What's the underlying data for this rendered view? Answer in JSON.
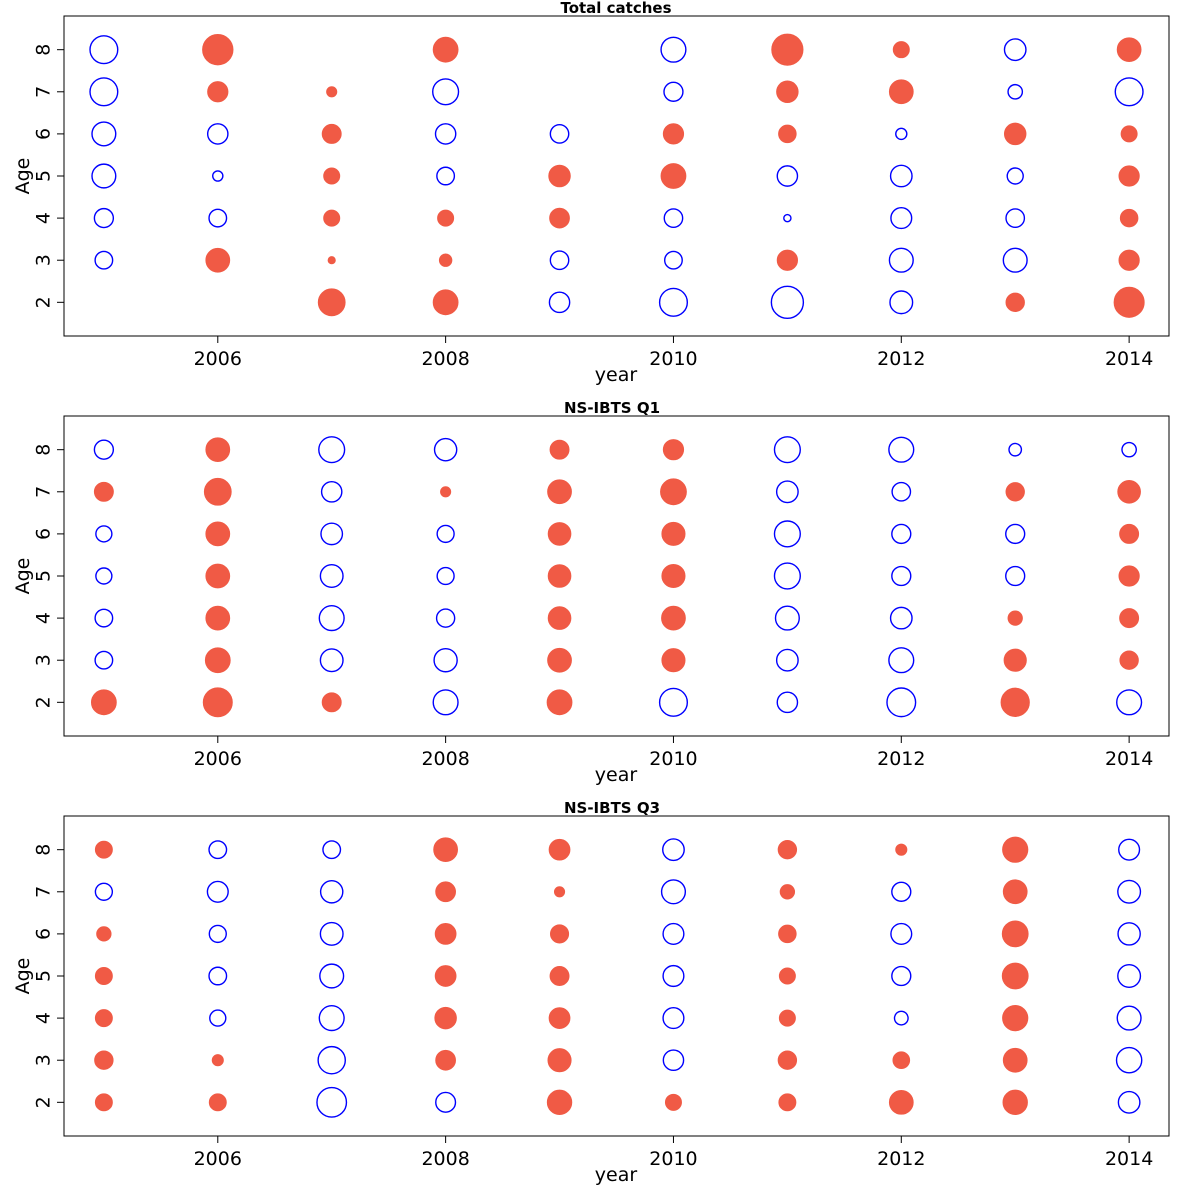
{
  "colors": {
    "positive": "#f05a45",
    "negative": "#0000ff"
  },
  "chart_data": [
    {
      "type": "scatter",
      "subtype": "bubble-residuals",
      "title": "Total catches",
      "xlabel": "year",
      "ylabel": "Age",
      "xlim": [
        2004.65,
        2014.35
      ],
      "ylim": [
        1.2,
        8.8
      ],
      "x_ticks": [
        2006,
        2008,
        2010,
        2012,
        2014
      ],
      "y_ticks": [
        2,
        3,
        4,
        5,
        6,
        7,
        8
      ],
      "years": [
        2005,
        2006,
        2007,
        2008,
        2009,
        2010,
        2011,
        2012,
        2013,
        2014
      ],
      "ages": [
        2,
        3,
        4,
        5,
        6,
        7,
        8
      ],
      "residuals": [
        [
          null,
          -0.3,
          -0.35,
          -0.55,
          -0.55,
          -0.75,
          -0.75
        ],
        [
          null,
          0.55,
          -0.3,
          -0.1,
          -0.4,
          0.4,
          0.9
        ],
        [
          0.7,
          0.05,
          0.25,
          0.25,
          0.35,
          0.1,
          null
        ],
        [
          0.6,
          0.15,
          0.25,
          -0.3,
          -0.4,
          -0.65,
          0.6
        ],
        [
          -0.4,
          -0.33,
          0.38,
          0.45,
          -0.33,
          null,
          null
        ],
        [
          -0.75,
          -0.3,
          -0.33,
          0.6,
          0.4,
          -0.35,
          -0.6
        ],
        [
          -1.0,
          0.4,
          -0.05,
          -0.4,
          0.3,
          0.45,
          0.95
        ],
        [
          -0.5,
          -0.55,
          -0.42,
          -0.45,
          -0.12,
          0.55,
          0.25
        ],
        [
          0.33,
          -0.55,
          -0.33,
          -0.25,
          0.45,
          -0.2,
          -0.45
        ],
        [
          0.88,
          0.4,
          0.3,
          0.4,
          0.25,
          -0.75,
          0.55
        ]
      ]
    },
    {
      "type": "scatter",
      "subtype": "bubble-residuals",
      "title": "NS-IBTS Q1",
      "xlabel": "year",
      "ylabel": "Age",
      "xlim": [
        2004.65,
        2014.35
      ],
      "ylim": [
        1.2,
        8.8
      ],
      "x_ticks": [
        2006,
        2008,
        2010,
        2012,
        2014
      ],
      "y_ticks": [
        2,
        3,
        4,
        5,
        6,
        7,
        8
      ],
      "years": [
        2005,
        2006,
        2007,
        2008,
        2009,
        2010,
        2011,
        2012,
        2013,
        2014
      ],
      "ages": [
        2,
        3,
        4,
        5,
        6,
        7,
        8
      ],
      "residuals": [
        [
          0.6,
          -0.3,
          -0.3,
          -0.25,
          -0.25,
          0.35,
          -0.35
        ],
        [
          0.82,
          0.6,
          0.55,
          0.55,
          0.55,
          0.7,
          0.55
        ],
        [
          0.35,
          -0.5,
          -0.6,
          -0.5,
          -0.45,
          -0.4,
          -0.65
        ],
        [
          -0.6,
          -0.52,
          -0.32,
          -0.28,
          -0.28,
          0.1,
          -0.48
        ],
        [
          0.6,
          0.55,
          0.5,
          0.5,
          0.5,
          0.55,
          0.35
        ],
        [
          -0.75,
          0.52,
          0.55,
          0.52,
          0.52,
          0.65,
          0.4
        ],
        [
          -0.4,
          -0.45,
          -0.55,
          -0.65,
          -0.65,
          -0.45,
          -0.65
        ],
        [
          -0.8,
          -0.6,
          -0.45,
          -0.35,
          -0.35,
          -0.33,
          -0.6
        ],
        [
          0.78,
          0.48,
          0.2,
          -0.35,
          -0.35,
          0.33,
          -0.15
        ],
        [
          -0.6,
          0.33,
          0.35,
          0.4,
          0.35,
          0.5,
          -0.2
        ]
      ]
    },
    {
      "type": "scatter",
      "subtype": "bubble-residuals",
      "title": "NS-IBTS Q3",
      "xlabel": "year",
      "ylabel": "Age",
      "xlim": [
        2004.65,
        2014.35
      ],
      "ylim": [
        1.2,
        8.8
      ],
      "x_ticks": [
        2006,
        2008,
        2010,
        2012,
        2014
      ],
      "y_ticks": [
        2,
        3,
        4,
        5,
        6,
        7,
        8
      ],
      "years": [
        2005,
        2006,
        2007,
        2008,
        2009,
        2010,
        2011,
        2012,
        2013,
        2014
      ],
      "ages": [
        2,
        3,
        4,
        5,
        6,
        7,
        8
      ],
      "residuals": [
        [
          0.28,
          0.28,
          -0.85,
          -0.38,
          0.58,
          0.25,
          0.28,
          0.55,
          0.58,
          -0.45
        ],
        [
          0.33,
          0.12,
          -0.72,
          0.38,
          0.52,
          -0.4,
          0.33,
          0.27,
          0.55,
          -0.62
        ],
        [
          0.28,
          -0.25,
          -0.6,
          0.45,
          0.42,
          -0.42,
          0.25,
          -0.18,
          0.62,
          -0.55
        ],
        [
          0.28,
          -0.3,
          -0.55,
          0.42,
          0.35,
          -0.42,
          0.25,
          -0.35,
          0.65,
          -0.5
        ],
        [
          0.2,
          -0.28,
          -0.5,
          0.42,
          0.32,
          -0.42,
          0.3,
          -0.42,
          0.65,
          -0.48
        ],
        [
          -0.28,
          -0.42,
          -0.48,
          0.38,
          0.1,
          -0.55,
          0.2,
          -0.35,
          0.55,
          -0.5
        ],
        [
          0.28,
          -0.3,
          -0.3,
          0.55,
          0.42,
          -0.45,
          0.33,
          0.12,
          0.62,
          -0.42
        ]
      ],
      "residuals_orientation": "ages-by-years"
    }
  ]
}
